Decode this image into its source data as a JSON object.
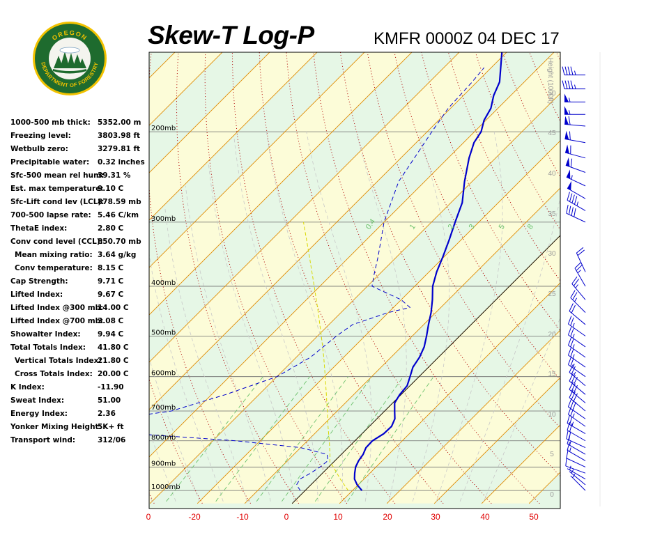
{
  "header": {
    "title": "Skew-T Log-P",
    "station": "KMFR 0000Z 04 DEC 17"
  },
  "logo": {
    "top_text": "OREGON",
    "bottom_text": "DEPARTMENT OF FORESTRY"
  },
  "stats": [
    {
      "label": "1000-500 mb thick:",
      "value": "5352.00 m"
    },
    {
      "label": "Freezing level:",
      "value": "3803.98 ft"
    },
    {
      "label": "Wetbulb zero:",
      "value": "3279.81 ft"
    },
    {
      "label": "Precipitable water:",
      "value": "0.32 inches"
    },
    {
      "label": "Sfc-500 mean rel hum:",
      "value": "39.31 %"
    },
    {
      "label": "Est. max temperature:",
      "value": "9.10 C"
    },
    {
      "label": "Sfc-Lift cond lev (LCL):",
      "value": "878.59 mb"
    },
    {
      "label": "700-500 lapse rate:",
      "value": "5.46 C/km"
    },
    {
      "label": "ThetaE index:",
      "value": "2.80 C"
    },
    {
      "label": "Conv cond level (CCL):",
      "value": "850.70 mb"
    },
    {
      "label": "Mean mixing ratio:",
      "value": "3.64 g/kg",
      "indent": true
    },
    {
      "label": "Conv temperature:",
      "value": "8.15 C",
      "indent": true
    },
    {
      "label": "Cap Strength:",
      "value": "9.71 C"
    },
    {
      "label": "Lifted Index:",
      "value": "9.67 C"
    },
    {
      "label": "Lifted Index @300 mb:",
      "value": "14.00 C"
    },
    {
      "label": "Lifted Index @700 mb:",
      "value": "3.08 C"
    },
    {
      "label": "Showalter Index:",
      "value": "9.94 C"
    },
    {
      "label": "Total Totals Index:",
      "value": "41.80 C"
    },
    {
      "label": "Vertical Totals Index:",
      "value": "21.80 C",
      "indent": true
    },
    {
      "label": "Cross Totals Index:",
      "value": "20.00 C",
      "indent": true
    },
    {
      "label": "K Index:",
      "value": "-11.90"
    },
    {
      "label": "Sweat Index:",
      "value": "51.00"
    },
    {
      "label": "Energy Index:",
      "value": "2.36"
    },
    {
      "label": "Yonker Mixing Height:",
      "value": "5K+ ft"
    },
    {
      "label": "Transport wind:",
      "value": "312/06"
    }
  ],
  "colors": {
    "temperature": "#0000cc",
    "dewpoint": "#0000cc",
    "parcel": "#d8d800",
    "isotherm": "#e08a00",
    "dry_adiabat": "#b00000",
    "moist_adiabat": "#c8c8c8",
    "mixing_ratio": "#6dc26d",
    "band_green": "#e6f7e6",
    "band_yellow": "#fcfcd8",
    "wind_barb": "#0000cc",
    "x_tick_labels": "#e00000",
    "height_labels": "#9a9a9a"
  },
  "chart_data": {
    "type": "line",
    "title": "Skew-T Log-P",
    "subtitle": "KMFR 0000Z 04 DEC 17",
    "x_axis": {
      "ticks": [
        "0",
        "-20",
        "-10",
        "0",
        "10",
        "20",
        "30",
        "40",
        "50"
      ]
    },
    "y_axis_pressure": {
      "ticks": [
        {
          "p": 200,
          "label": "200mb"
        },
        {
          "p": 300,
          "label": "300mb"
        },
        {
          "p": 400,
          "label": "400mb"
        },
        {
          "p": 500,
          "label": "500mb"
        },
        {
          "p": 600,
          "label": "600mb"
        },
        {
          "p": 700,
          "label": "700mb"
        },
        {
          "p": 800,
          "label": "800mb"
        },
        {
          "p": 900,
          "label": "900mb"
        },
        {
          "p": 1000,
          "label": "1000mb"
        }
      ],
      "scale": "log"
    },
    "height_axis": {
      "label": "Height (1000ft)",
      "ticks": [
        "50",
        "45",
        "40",
        "35",
        "30",
        "25",
        "20",
        "15",
        "10",
        "5",
        "0"
      ]
    },
    "mixing_ratio_labels": [
      "0.4",
      "1",
      "2",
      "3",
      "5",
      "8"
    ],
    "series": [
      {
        "kind": "temperature",
        "points": [
          [
            1000,
            12.0
          ],
          [
            975,
            9.8
          ],
          [
            950,
            8.0
          ],
          [
            925,
            6.8
          ],
          [
            900,
            5.7
          ],
          [
            875,
            5.0
          ],
          [
            850,
            4.6
          ],
          [
            825,
            3.8
          ],
          [
            800,
            3.7
          ],
          [
            775,
            4.6
          ],
          [
            750,
            4.7
          ],
          [
            725,
            3.8
          ],
          [
            700,
            2.1
          ],
          [
            675,
            0.4
          ],
          [
            650,
            -0.3
          ],
          [
            625,
            -0.6
          ],
          [
            600,
            -1.9
          ],
          [
            575,
            -3.3
          ],
          [
            550,
            -4.0
          ],
          [
            525,
            -5.2
          ],
          [
            500,
            -7.0
          ],
          [
            475,
            -9.0
          ],
          [
            450,
            -11.0
          ],
          [
            425,
            -13.4
          ],
          [
            400,
            -16.2
          ],
          [
            375,
            -18.4
          ],
          [
            350,
            -20.3
          ],
          [
            325,
            -22.5
          ],
          [
            300,
            -25.0
          ],
          [
            275,
            -27.6
          ],
          [
            250,
            -31.6
          ],
          [
            225,
            -35.6
          ],
          [
            210,
            -37.8
          ],
          [
            200,
            -38.6
          ],
          [
            190,
            -40.4
          ],
          [
            180,
            -41.5
          ],
          [
            170,
            -43.6
          ],
          [
            160,
            -45.2
          ],
          [
            150,
            -48.0
          ],
          [
            140,
            -51.0
          ]
        ]
      },
      {
        "kind": "dewpoint",
        "points": [
          [
            1000,
            -1.0
          ],
          [
            975,
            -3.0
          ],
          [
            950,
            -3.5
          ],
          [
            925,
            -2.5
          ],
          [
            900,
            -1.8
          ],
          [
            875,
            -1.5
          ],
          [
            850,
            -3.0
          ],
          [
            825,
            -10.0
          ],
          [
            800,
            -25.0
          ],
          [
            775,
            -48.0
          ],
          [
            750,
            -60.0
          ],
          [
            725,
            -55.0
          ],
          [
            700,
            -45.0
          ],
          [
            650,
            -37.0
          ],
          [
            600,
            -30.0
          ],
          [
            550,
            -27.0
          ],
          [
            500,
            -26.0
          ],
          [
            475,
            -25.0
          ],
          [
            450,
            -20.0
          ],
          [
            440,
            -16.5
          ],
          [
            425,
            -20.0
          ],
          [
            400,
            -29.0
          ],
          [
            380,
            -31.0
          ],
          [
            350,
            -34.0
          ],
          [
            300,
            -40.0
          ],
          [
            250,
            -45.5
          ],
          [
            220,
            -47.5
          ],
          [
            200,
            -49.0
          ],
          [
            180,
            -50.5
          ],
          [
            160,
            -51.0
          ],
          [
            150,
            -51.5
          ]
        ]
      },
      {
        "kind": "parcel",
        "points": [
          [
            1000,
            9.1
          ],
          [
            950,
            5.0
          ],
          [
            900,
            1.0
          ],
          [
            880,
            -0.8
          ],
          [
            850,
            -2.4
          ],
          [
            800,
            -5.4
          ],
          [
            750,
            -8.7
          ],
          [
            700,
            -12.1
          ],
          [
            650,
            -15.8
          ],
          [
            600,
            -19.8
          ],
          [
            550,
            -24.2
          ],
          [
            500,
            -29.2
          ],
          [
            450,
            -34.8
          ],
          [
            400,
            -41.2
          ],
          [
            350,
            -48.5
          ],
          [
            300,
            -57.0
          ]
        ]
      }
    ],
    "wind_barbs": [
      {
        "p": 1000,
        "dir": 315,
        "kt": 5
      },
      {
        "p": 975,
        "dir": 310,
        "kt": 5
      },
      {
        "p": 950,
        "dir": 300,
        "kt": 5
      },
      {
        "p": 925,
        "dir": 290,
        "kt": 10
      },
      {
        "p": 900,
        "dir": 295,
        "kt": 10
      },
      {
        "p": 875,
        "dir": 300,
        "kt": 15
      },
      {
        "p": 850,
        "dir": 300,
        "kt": 15
      },
      {
        "p": 825,
        "dir": 295,
        "kt": 20
      },
      {
        "p": 800,
        "dir": 300,
        "kt": 20
      },
      {
        "p": 775,
        "dir": 300,
        "kt": 25
      },
      {
        "p": 750,
        "dir": 305,
        "kt": 25
      },
      {
        "p": 725,
        "dir": 305,
        "kt": 30
      },
      {
        "p": 700,
        "dir": 310,
        "kt": 30
      },
      {
        "p": 675,
        "dir": 310,
        "kt": 30
      },
      {
        "p": 650,
        "dir": 310,
        "kt": 30
      },
      {
        "p": 625,
        "dir": 310,
        "kt": 25
      },
      {
        "p": 600,
        "dir": 305,
        "kt": 25
      },
      {
        "p": 575,
        "dir": 305,
        "kt": 25
      },
      {
        "p": 550,
        "dir": 305,
        "kt": 25
      },
      {
        "p": 525,
        "dir": 305,
        "kt": 25
      },
      {
        "p": 500,
        "dir": 305,
        "kt": 25
      },
      {
        "p": 475,
        "dir": 310,
        "kt": 20
      },
      {
        "p": 450,
        "dir": 315,
        "kt": 25
      },
      {
        "p": 425,
        "dir": 320,
        "kt": 25
      },
      {
        "p": 400,
        "dir": 330,
        "kt": 25
      },
      {
        "p": 375,
        "dir": 335,
        "kt": 20
      },
      {
        "p": 300,
        "dir": 295,
        "kt": 40
      },
      {
        "p": 285,
        "dir": 300,
        "kt": 45
      },
      {
        "p": 270,
        "dir": 300,
        "kt": 50
      },
      {
        "p": 255,
        "dir": 295,
        "kt": 55
      },
      {
        "p": 240,
        "dir": 290,
        "kt": 60
      },
      {
        "p": 225,
        "dir": 285,
        "kt": 60
      },
      {
        "p": 210,
        "dir": 280,
        "kt": 60
      },
      {
        "p": 195,
        "dir": 275,
        "kt": 60
      },
      {
        "p": 185,
        "dir": 270,
        "kt": 55
      },
      {
        "p": 175,
        "dir": 270,
        "kt": 55
      },
      {
        "p": 165,
        "dir": 270,
        "kt": 45
      },
      {
        "p": 155,
        "dir": 270,
        "kt": 45
      }
    ]
  }
}
